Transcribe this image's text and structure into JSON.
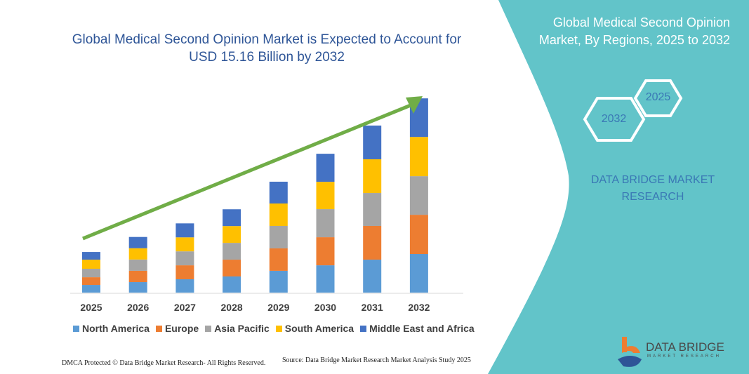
{
  "colors": {
    "panel": "#62c4c9",
    "arrow": "#70ad47",
    "text_blue": "#2e5597"
  },
  "right_panel": {
    "title": "Global Medical Second Opinion Market, By Regions, 2025 to 2032",
    "hex_a": "2025",
    "hex_b": "2032",
    "brand": "DATA BRIDGE MARKET RESEARCH",
    "logo_text": "DATA BRIDGE",
    "logo_sub": "MARKET RESEARCH"
  },
  "footer": {
    "left": "DMCA Protected © Data Bridge Market Research- All Rights Reserved.",
    "right": "Source: Data Bridge Market Research  Market Analysis Study 2025"
  },
  "chart_data": {
    "type": "bar",
    "stacked": true,
    "title": "Global Medical Second Opinion Market is Expected to Account for USD 15.16 Billion by 2032",
    "categories": [
      "2025",
      "2026",
      "2027",
      "2028",
      "2029",
      "2030",
      "2031",
      "2032"
    ],
    "ylim": [
      0,
      15.16
    ],
    "grid": false,
    "legend": "bottom",
    "series": [
      {
        "name": "North America",
        "color": "#5b9bd5",
        "values": [
          0.6,
          0.82,
          1.04,
          1.26,
          1.7,
          2.13,
          2.57,
          3.01
        ]
      },
      {
        "name": "Europe",
        "color": "#ed7d31",
        "values": [
          0.6,
          0.88,
          1.09,
          1.31,
          1.75,
          2.19,
          2.63,
          3.06
        ]
      },
      {
        "name": "Asia Pacific",
        "color": "#a5a5a5",
        "values": [
          0.66,
          0.88,
          1.09,
          1.31,
          1.75,
          2.19,
          2.57,
          3.01
        ]
      },
      {
        "name": "South America",
        "color": "#ffc000",
        "values": [
          0.71,
          0.88,
          1.09,
          1.31,
          1.75,
          2.13,
          2.63,
          3.06
        ]
      },
      {
        "name": "Middle East and Africa",
        "color": "#4472c4",
        "values": [
          0.6,
          0.88,
          1.09,
          1.31,
          1.7,
          2.19,
          2.63,
          3.01
        ]
      }
    ]
  }
}
